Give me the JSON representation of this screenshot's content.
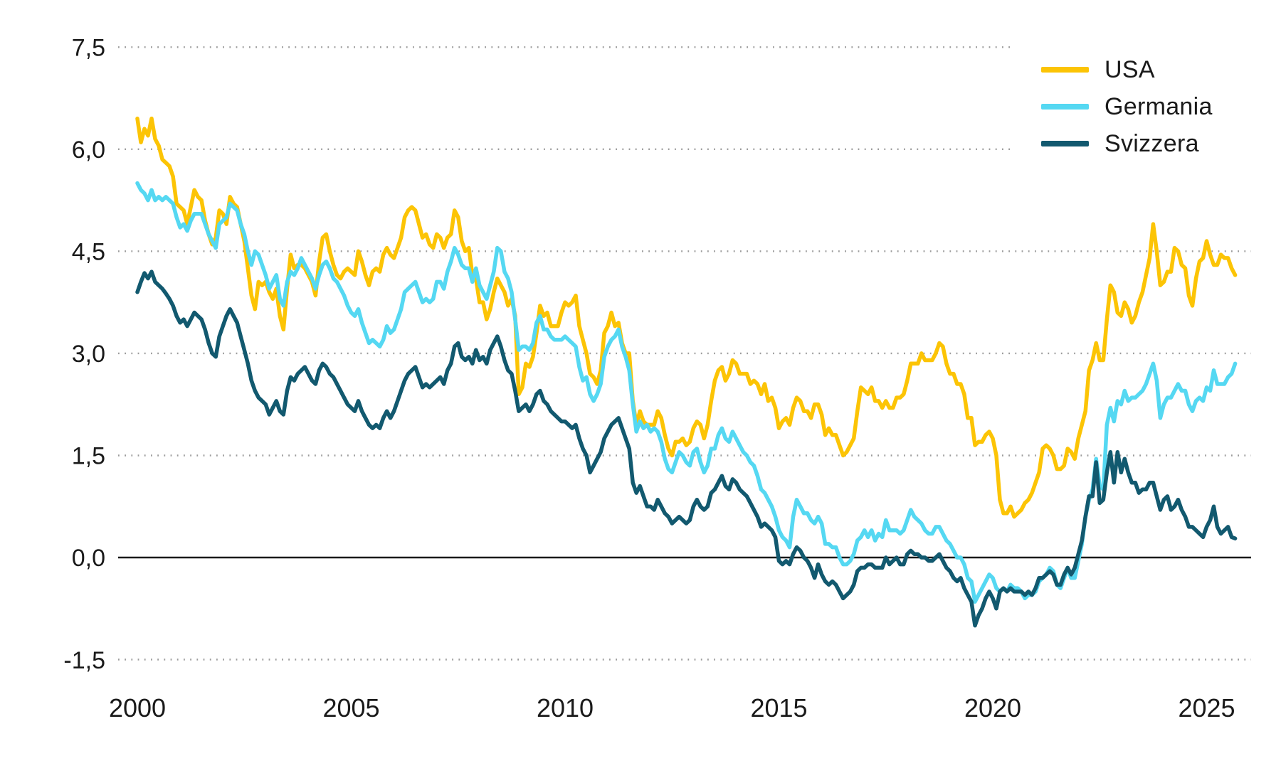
{
  "chart_data": {
    "type": "line",
    "title": "",
    "xlabel": "",
    "ylabel": "",
    "frequency": "monthly",
    "start_year": 2000,
    "points_per_year": 12,
    "ylim": [
      -1.5,
      7.5
    ],
    "grid": "dotted-horizontal",
    "zero_line": true,
    "decimal_separator": ",",
    "y_ticks": [
      7.5,
      6.0,
      4.5,
      3.0,
      1.5,
      0.0,
      -1.5
    ],
    "y_tick_labels": [
      "7,5",
      "6,0",
      "4,5",
      "3,0",
      "1,5",
      "0,0",
      "-1,5"
    ],
    "x_ticks": [
      2000,
      2005,
      2010,
      2015,
      2020,
      2025
    ],
    "x_tick_labels": [
      "2000",
      "2005",
      "2010",
      "2015",
      "2020",
      "2025"
    ],
    "legend_position": "top-right",
    "legend": [
      {
        "label": "USA",
        "color": "#FCC405"
      },
      {
        "label": "Germania",
        "color": "#55D8F2"
      },
      {
        "label": "Svizzera",
        "color": "#12596F"
      }
    ],
    "colors": {
      "gridline": "#9b9b9b",
      "zero_line": "#1a1a1a",
      "tick_text": "#1a1a1a",
      "background": "#ffffff"
    },
    "series": [
      {
        "name": "USA",
        "color": "#FCC405",
        "values": [
          6.45,
          6.1,
          6.3,
          6.2,
          6.45,
          6.15,
          6.05,
          5.85,
          5.8,
          5.75,
          5.6,
          5.2,
          5.15,
          5.1,
          4.9,
          5.15,
          5.4,
          5.3,
          5.25,
          4.95,
          4.75,
          4.6,
          4.7,
          5.1,
          5.05,
          4.9,
          5.3,
          5.2,
          5.15,
          4.9,
          4.65,
          4.25,
          3.85,
          3.65,
          4.05,
          4.0,
          4.05,
          3.9,
          3.8,
          3.95,
          3.55,
          3.35,
          3.95,
          4.45,
          4.25,
          4.3,
          4.3,
          4.25,
          4.15,
          4.05,
          3.85,
          4.35,
          4.7,
          4.75,
          4.5,
          4.3,
          4.15,
          4.1,
          4.2,
          4.25,
          4.2,
          4.15,
          4.5,
          4.35,
          4.15,
          4.0,
          4.2,
          4.25,
          4.2,
          4.45,
          4.55,
          4.45,
          4.4,
          4.55,
          4.7,
          5.0,
          5.1,
          5.15,
          5.1,
          4.9,
          4.7,
          4.75,
          4.6,
          4.55,
          4.75,
          4.7,
          4.55,
          4.7,
          4.75,
          5.1,
          5.0,
          4.65,
          4.5,
          4.55,
          4.15,
          4.1,
          3.75,
          3.75,
          3.5,
          3.65,
          3.9,
          4.1,
          4.0,
          3.9,
          3.7,
          3.8,
          3.55,
          2.4,
          2.5,
          2.85,
          2.8,
          2.95,
          3.3,
          3.7,
          3.55,
          3.6,
          3.4,
          3.4,
          3.4,
          3.6,
          3.75,
          3.7,
          3.75,
          3.85,
          3.4,
          3.2,
          3.0,
          2.7,
          2.65,
          2.55,
          2.75,
          3.3,
          3.4,
          3.6,
          3.4,
          3.45,
          3.15,
          3.0,
          3.0,
          2.3,
          1.95,
          2.15,
          2.0,
          1.95,
          1.95,
          1.95,
          2.15,
          2.05,
          1.8,
          1.6,
          1.5,
          1.7,
          1.7,
          1.75,
          1.65,
          1.7,
          1.9,
          2.0,
          1.95,
          1.75,
          1.95,
          2.3,
          2.6,
          2.75,
          2.8,
          2.6,
          2.7,
          2.9,
          2.85,
          2.7,
          2.7,
          2.7,
          2.55,
          2.6,
          2.55,
          2.4,
          2.55,
          2.3,
          2.35,
          2.2,
          1.9,
          2.0,
          2.05,
          1.95,
          2.2,
          2.35,
          2.3,
          2.15,
          2.15,
          2.05,
          2.25,
          2.25,
          2.1,
          1.8,
          1.9,
          1.8,
          1.8,
          1.65,
          1.5,
          1.55,
          1.65,
          1.75,
          2.15,
          2.5,
          2.45,
          2.4,
          2.5,
          2.3,
          2.3,
          2.2,
          2.3,
          2.2,
          2.2,
          2.35,
          2.35,
          2.4,
          2.6,
          2.85,
          2.85,
          2.85,
          3.0,
          2.9,
          2.9,
          2.9,
          3.0,
          3.15,
          3.1,
          2.85,
          2.7,
          2.7,
          2.55,
          2.55,
          2.4,
          2.05,
          2.05,
          1.65,
          1.7,
          1.7,
          1.8,
          1.85,
          1.75,
          1.5,
          0.85,
          0.65,
          0.65,
          0.75,
          0.6,
          0.65,
          0.7,
          0.8,
          0.85,
          0.95,
          1.1,
          1.25,
          1.6,
          1.65,
          1.6,
          1.5,
          1.3,
          1.3,
          1.35,
          1.6,
          1.55,
          1.45,
          1.75,
          1.95,
          2.15,
          2.75,
          2.9,
          3.15,
          2.9,
          2.9,
          3.5,
          4.0,
          3.9,
          3.6,
          3.55,
          3.75,
          3.65,
          3.45,
          3.55,
          3.75,
          3.9,
          4.15,
          4.4,
          4.9,
          4.5,
          4.0,
          4.05,
          4.2,
          4.2,
          4.55,
          4.5,
          4.3,
          4.25,
          3.85,
          3.7,
          4.1,
          4.35,
          4.4,
          4.65,
          4.45,
          4.3,
          4.3,
          4.45,
          4.4,
          4.4,
          4.25,
          4.15
        ]
      },
      {
        "name": "Germania",
        "color": "#55D8F2",
        "values": [
          5.5,
          5.4,
          5.35,
          5.25,
          5.4,
          5.25,
          5.3,
          5.25,
          5.3,
          5.25,
          5.2,
          5.0,
          4.85,
          4.9,
          4.8,
          4.95,
          5.05,
          5.05,
          5.05,
          4.9,
          4.75,
          4.65,
          4.55,
          4.9,
          4.95,
          5.0,
          5.2,
          5.15,
          5.1,
          4.9,
          4.75,
          4.5,
          4.3,
          4.5,
          4.45,
          4.3,
          4.15,
          3.95,
          4.05,
          4.15,
          3.8,
          3.7,
          4.05,
          4.2,
          4.15,
          4.25,
          4.4,
          4.3,
          4.2,
          4.1,
          3.95,
          4.15,
          4.3,
          4.35,
          4.25,
          4.1,
          4.05,
          3.95,
          3.85,
          3.7,
          3.6,
          3.55,
          3.65,
          3.45,
          3.3,
          3.15,
          3.2,
          3.15,
          3.1,
          3.2,
          3.4,
          3.3,
          3.35,
          3.5,
          3.65,
          3.9,
          3.95,
          4.0,
          4.05,
          3.9,
          3.75,
          3.8,
          3.75,
          3.8,
          4.05,
          4.05,
          3.95,
          4.2,
          4.35,
          4.55,
          4.45,
          4.3,
          4.25,
          4.25,
          4.05,
          4.25,
          4.0,
          3.9,
          3.8,
          4.0,
          4.2,
          4.55,
          4.5,
          4.2,
          4.1,
          3.9,
          3.5,
          3.05,
          3.1,
          3.1,
          3.05,
          3.15,
          3.45,
          3.55,
          3.35,
          3.35,
          3.25,
          3.2,
          3.2,
          3.2,
          3.25,
          3.2,
          3.15,
          3.1,
          2.8,
          2.6,
          2.65,
          2.4,
          2.3,
          2.4,
          2.55,
          2.95,
          3.1,
          3.2,
          3.25,
          3.35,
          3.1,
          2.95,
          2.75,
          2.25,
          1.85,
          2.0,
          1.9,
          1.95,
          1.85,
          1.9,
          1.85,
          1.7,
          1.45,
          1.3,
          1.25,
          1.4,
          1.55,
          1.5,
          1.4,
          1.35,
          1.55,
          1.6,
          1.4,
          1.25,
          1.35,
          1.6,
          1.6,
          1.8,
          1.9,
          1.75,
          1.7,
          1.85,
          1.75,
          1.65,
          1.55,
          1.5,
          1.4,
          1.35,
          1.2,
          1.0,
          0.95,
          0.85,
          0.75,
          0.6,
          0.4,
          0.3,
          0.25,
          0.15,
          0.6,
          0.85,
          0.75,
          0.65,
          0.65,
          0.55,
          0.5,
          0.6,
          0.5,
          0.2,
          0.2,
          0.15,
          0.15,
          0.0,
          -0.1,
          -0.1,
          -0.05,
          0.05,
          0.25,
          0.3,
          0.4,
          0.3,
          0.4,
          0.25,
          0.35,
          0.3,
          0.55,
          0.4,
          0.4,
          0.4,
          0.35,
          0.4,
          0.55,
          0.7,
          0.6,
          0.55,
          0.5,
          0.4,
          0.35,
          0.35,
          0.45,
          0.45,
          0.35,
          0.25,
          0.2,
          0.1,
          0.0,
          0.0,
          -0.1,
          -0.3,
          -0.35,
          -0.65,
          -0.55,
          -0.45,
          -0.35,
          -0.25,
          -0.3,
          -0.45,
          -0.5,
          -0.45,
          -0.5,
          -0.4,
          -0.45,
          -0.45,
          -0.5,
          -0.6,
          -0.55,
          -0.55,
          -0.5,
          -0.35,
          -0.3,
          -0.25,
          -0.15,
          -0.2,
          -0.4,
          -0.45,
          -0.3,
          -0.15,
          -0.3,
          -0.3,
          -0.05,
          0.2,
          0.6,
          0.85,
          1.0,
          1.45,
          1.05,
          1.0,
          1.95,
          2.2,
          2.0,
          2.3,
          2.25,
          2.45,
          2.3,
          2.35,
          2.35,
          2.4,
          2.45,
          2.55,
          2.7,
          2.85,
          2.6,
          2.05,
          2.25,
          2.35,
          2.35,
          2.45,
          2.55,
          2.45,
          2.45,
          2.25,
          2.15,
          2.3,
          2.35,
          2.3,
          2.5,
          2.45,
          2.75,
          2.55,
          2.55,
          2.55,
          2.65,
          2.7,
          2.85
        ]
      },
      {
        "name": "Svizzera",
        "color": "#12596F",
        "values": [
          3.9,
          4.05,
          4.18,
          4.1,
          4.2,
          4.05,
          4.0,
          3.95,
          3.88,
          3.8,
          3.7,
          3.55,
          3.45,
          3.5,
          3.4,
          3.5,
          3.6,
          3.55,
          3.5,
          3.35,
          3.15,
          3.0,
          2.95,
          3.25,
          3.4,
          3.55,
          3.65,
          3.55,
          3.45,
          3.25,
          3.05,
          2.85,
          2.6,
          2.45,
          2.35,
          2.3,
          2.25,
          2.1,
          2.2,
          2.3,
          2.15,
          2.1,
          2.45,
          2.65,
          2.6,
          2.7,
          2.75,
          2.8,
          2.7,
          2.6,
          2.55,
          2.75,
          2.85,
          2.8,
          2.7,
          2.65,
          2.55,
          2.45,
          2.35,
          2.25,
          2.2,
          2.15,
          2.3,
          2.15,
          2.05,
          1.95,
          1.9,
          1.95,
          1.9,
          2.05,
          2.15,
          2.05,
          2.15,
          2.3,
          2.45,
          2.6,
          2.7,
          2.75,
          2.8,
          2.65,
          2.5,
          2.55,
          2.5,
          2.55,
          2.6,
          2.65,
          2.55,
          2.75,
          2.85,
          3.1,
          3.15,
          2.95,
          2.9,
          2.95,
          2.85,
          3.05,
          2.9,
          2.95,
          2.85,
          3.05,
          3.15,
          3.25,
          3.1,
          2.9,
          2.75,
          2.7,
          2.45,
          2.15,
          2.2,
          2.25,
          2.15,
          2.25,
          2.4,
          2.45,
          2.3,
          2.25,
          2.15,
          2.1,
          2.05,
          2.0,
          2.0,
          1.95,
          1.9,
          1.95,
          1.75,
          1.6,
          1.5,
          1.25,
          1.35,
          1.45,
          1.55,
          1.75,
          1.85,
          1.95,
          2.0,
          2.05,
          1.9,
          1.75,
          1.6,
          1.1,
          0.95,
          1.05,
          0.9,
          0.75,
          0.75,
          0.7,
          0.85,
          0.75,
          0.65,
          0.6,
          0.5,
          0.55,
          0.6,
          0.55,
          0.5,
          0.55,
          0.75,
          0.85,
          0.75,
          0.7,
          0.75,
          0.95,
          1.0,
          1.1,
          1.2,
          1.05,
          1.0,
          1.15,
          1.1,
          1.0,
          0.95,
          0.9,
          0.8,
          0.7,
          0.6,
          0.45,
          0.5,
          0.45,
          0.4,
          0.3,
          -0.05,
          -0.1,
          -0.05,
          -0.1,
          0.05,
          0.15,
          0.1,
          0.0,
          -0.05,
          -0.15,
          -0.3,
          -0.1,
          -0.25,
          -0.35,
          -0.4,
          -0.35,
          -0.4,
          -0.5,
          -0.6,
          -0.55,
          -0.5,
          -0.4,
          -0.2,
          -0.15,
          -0.15,
          -0.1,
          -0.1,
          -0.15,
          -0.15,
          -0.15,
          0.0,
          -0.1,
          -0.05,
          0.0,
          -0.1,
          -0.1,
          0.05,
          0.1,
          0.05,
          0.05,
          0.0,
          0.0,
          -0.05,
          -0.05,
          0.0,
          0.05,
          -0.05,
          -0.15,
          -0.2,
          -0.3,
          -0.35,
          -0.3,
          -0.45,
          -0.55,
          -0.65,
          -1.0,
          -0.85,
          -0.75,
          -0.6,
          -0.5,
          -0.6,
          -0.75,
          -0.5,
          -0.45,
          -0.5,
          -0.45,
          -0.5,
          -0.5,
          -0.5,
          -0.55,
          -0.5,
          -0.55,
          -0.45,
          -0.3,
          -0.3,
          -0.25,
          -0.2,
          -0.25,
          -0.4,
          -0.4,
          -0.25,
          -0.15,
          -0.25,
          -0.15,
          0.05,
          0.25,
          0.6,
          0.9,
          0.9,
          1.4,
          0.8,
          0.85,
          1.25,
          1.55,
          1.1,
          1.55,
          1.25,
          1.45,
          1.25,
          1.1,
          1.1,
          0.95,
          1.0,
          1.0,
          1.1,
          1.1,
          0.9,
          0.7,
          0.85,
          0.9,
          0.7,
          0.75,
          0.85,
          0.7,
          0.6,
          0.45,
          0.45,
          0.4,
          0.35,
          0.3,
          0.45,
          0.55,
          0.75,
          0.45,
          0.35,
          0.4,
          0.45,
          0.3,
          0.28
        ]
      }
    ]
  }
}
